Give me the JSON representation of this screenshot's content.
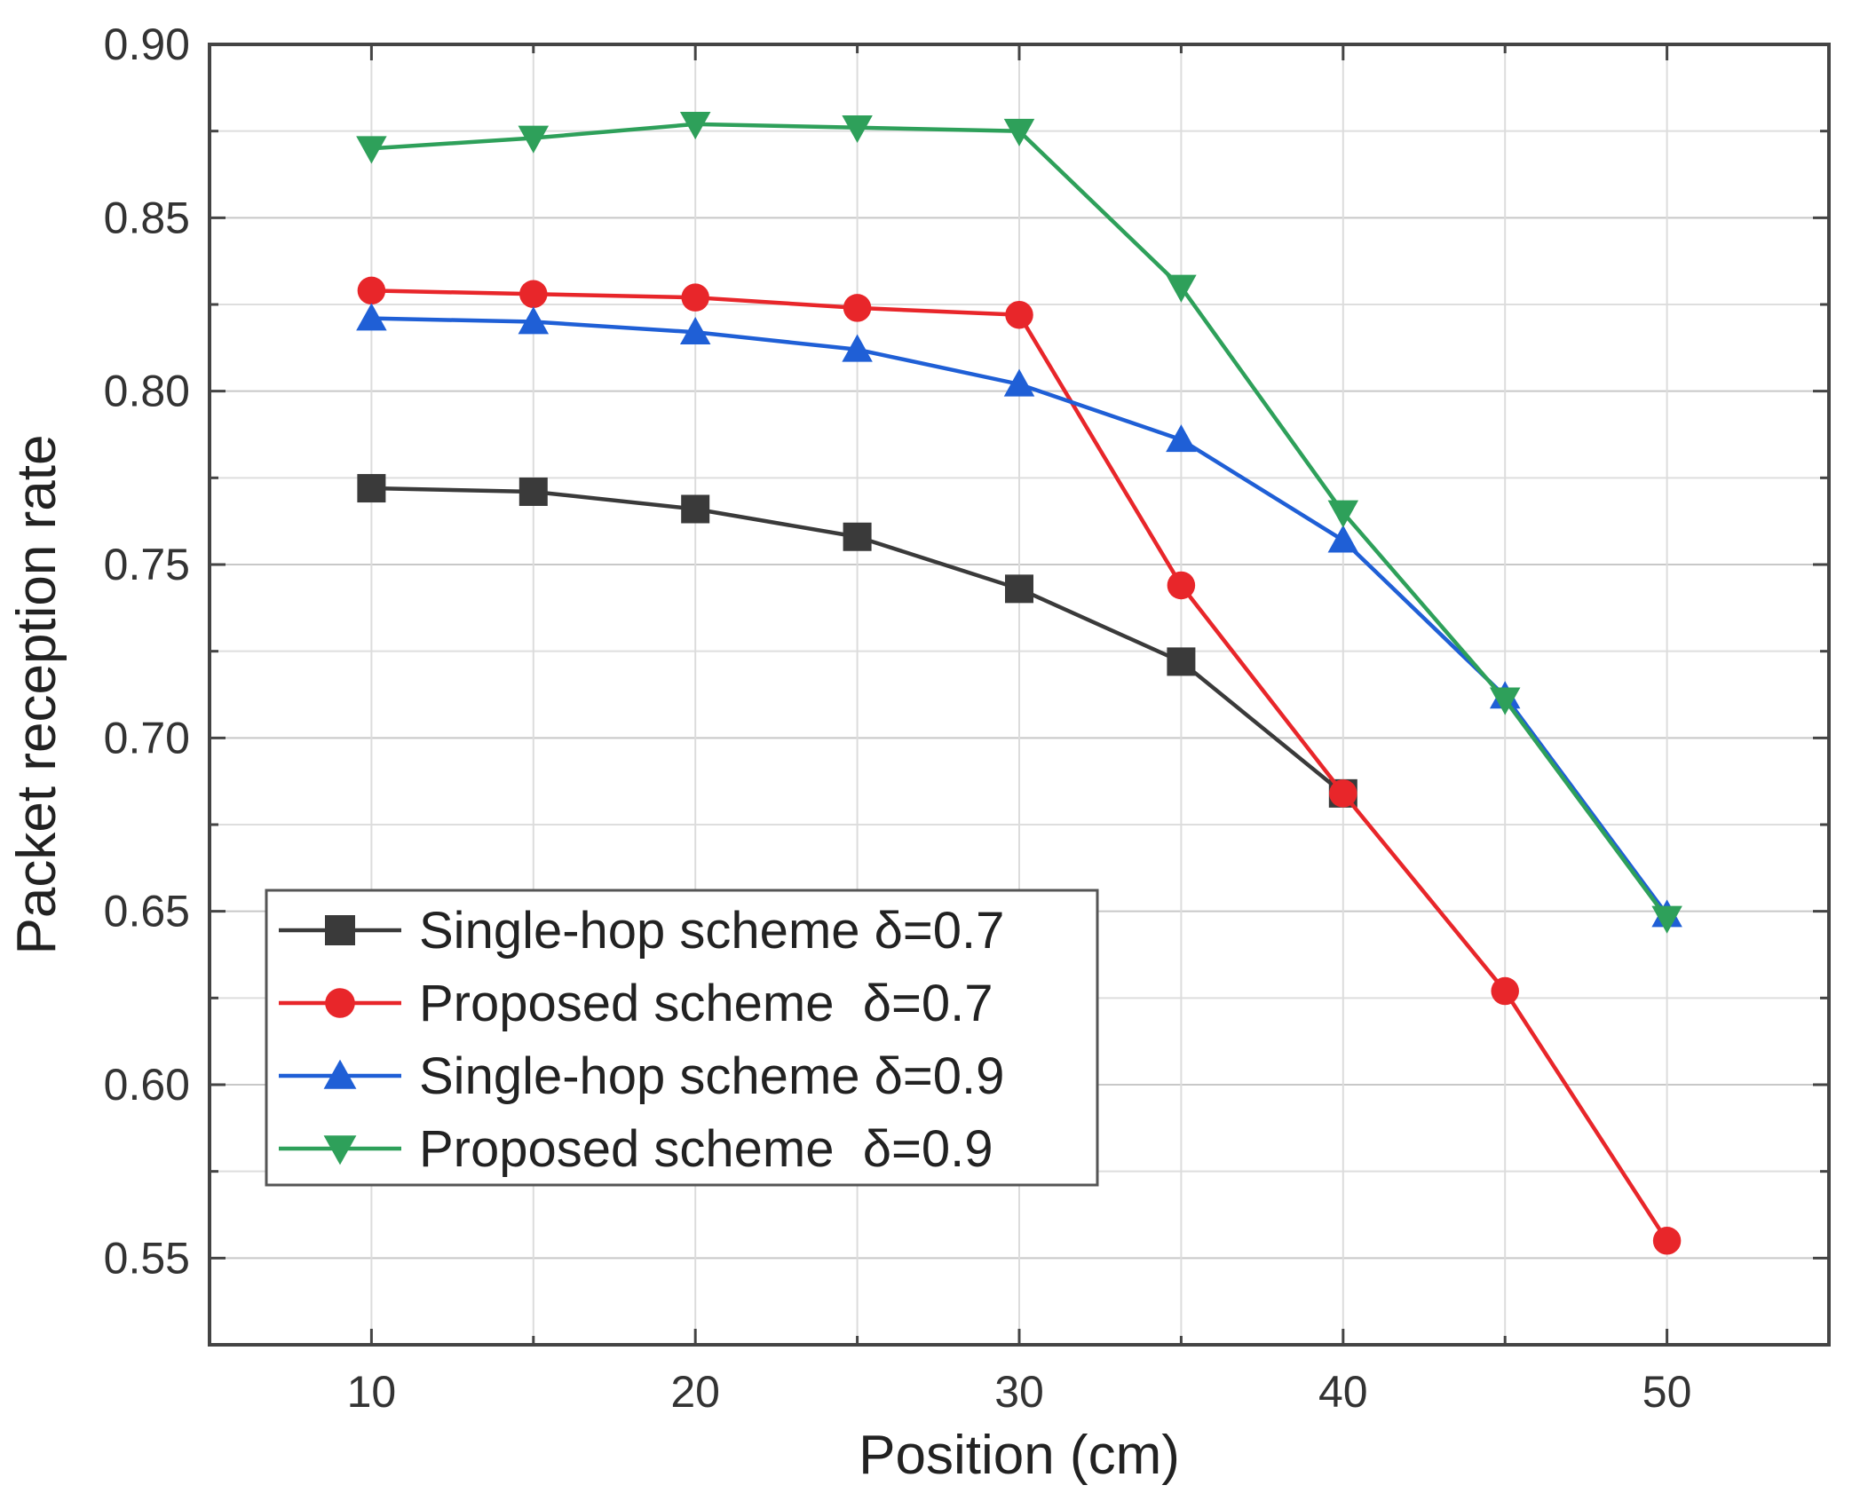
{
  "chart_data": {
    "type": "line",
    "title": "",
    "xlabel": "Position (cm)",
    "ylabel": "Packet reception rate",
    "xlim": [
      5,
      55
    ],
    "ylim": [
      0.525,
      0.9
    ],
    "x_ticks": [
      "10",
      "20",
      "30",
      "40",
      "50"
    ],
    "y_ticks": [
      "0.55",
      "0.60",
      "0.65",
      "0.70",
      "0.75",
      "0.80",
      "0.85",
      "0.90"
    ],
    "grid": true,
    "legend_position": "lower-left",
    "series": [
      {
        "name": "Single-hop scheme δ=0.7",
        "color": "#3a3a3a",
        "marker": "square",
        "points": [
          [
            10,
            0.772
          ],
          [
            15,
            0.771
          ],
          [
            20,
            0.766
          ],
          [
            25,
            0.758
          ],
          [
            30,
            0.743
          ],
          [
            35,
            0.722
          ],
          [
            40,
            0.684
          ]
        ]
      },
      {
        "name": "Proposed scheme  δ=0.7",
        "color": "#e8262a",
        "marker": "circle",
        "points": [
          [
            10,
            0.829
          ],
          [
            15,
            0.828
          ],
          [
            20,
            0.827
          ],
          [
            25,
            0.824
          ],
          [
            30,
            0.822
          ],
          [
            35,
            0.744
          ],
          [
            40,
            0.684
          ],
          [
            45,
            0.627
          ],
          [
            50,
            0.555
          ]
        ]
      },
      {
        "name": "Single-hop scheme δ=0.9",
        "color": "#1f5fd6",
        "marker": "triangle-up",
        "points": [
          [
            10,
            0.821
          ],
          [
            15,
            0.82
          ],
          [
            20,
            0.817
          ],
          [
            25,
            0.812
          ],
          [
            30,
            0.802
          ],
          [
            35,
            0.786
          ],
          [
            40,
            0.757
          ],
          [
            45,
            0.712
          ],
          [
            50,
            0.649
          ]
        ]
      },
      {
        "name": "Proposed scheme  δ=0.9",
        "color": "#2ea05a",
        "marker": "triangle-down",
        "points": [
          [
            10,
            0.87
          ],
          [
            15,
            0.873
          ],
          [
            20,
            0.877
          ],
          [
            25,
            0.876
          ],
          [
            30,
            0.875
          ],
          [
            35,
            0.83
          ],
          [
            40,
            0.765
          ],
          [
            45,
            0.711
          ],
          [
            50,
            0.648
          ]
        ]
      }
    ]
  }
}
